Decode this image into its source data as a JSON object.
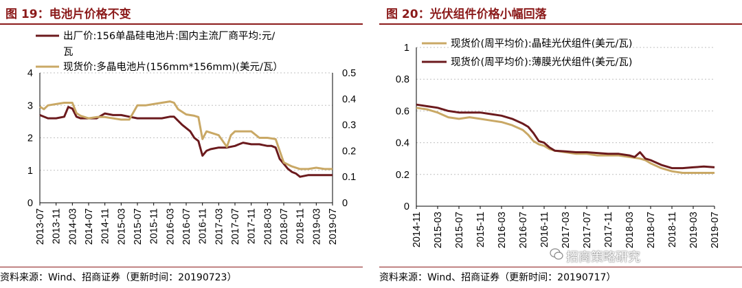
{
  "left": {
    "title": "图 19：电池片价格不变",
    "source": "资料来源：Wind、招商证券（更新时间：20190723）",
    "legend": [
      "出厂价:156单晶硅电池片:国内主流厂商平均:元/",
      "瓦",
      "现货价:多晶电池片(156mm*156mm)(美元/瓦）"
    ],
    "colors": {
      "series1": "#6b1a1d",
      "series2": "#c9a865",
      "accent": "#8b1a1a"
    }
  },
  "right": {
    "title": "图 20：光伏组件价格小幅回落",
    "source": "资料来源：Wind、招商证券（更新时间：20190717）",
    "legend": [
      "现货价(周平均价):晶硅光伏组件(美元/瓦)",
      "现货价(周平均价):薄膜光伏组件(美元/瓦)"
    ],
    "colors": {
      "series1": "#c9a865",
      "series2": "#6b1a1d"
    }
  },
  "watermark": "招商策略研究",
  "chart_data": [
    {
      "type": "line",
      "title": "图 19：电池片价格不变",
      "xlabel": "",
      "ylabel": "",
      "x_ticks": [
        "2013-07",
        "2013-11",
        "2014-03",
        "2014-07",
        "2014-11",
        "2015-03",
        "2015-07",
        "2015-11",
        "2016-03",
        "2016-07",
        "2016-11",
        "2017-03",
        "2017-07",
        "2017-11",
        "2018-03",
        "2018-07",
        "2018-11",
        "2019-03",
        "2019-07"
      ],
      "ylim_left": [
        0,
        4
      ],
      "yticks_left": [
        "0",
        "1",
        "2",
        "3",
        "4"
      ],
      "ylim_right": [
        0,
        0.5
      ],
      "yticks_right": [
        "0",
        "0.1",
        "0.2",
        "0.3",
        "0.4",
        "0.5"
      ],
      "grid": "horizontal dashed",
      "legend_position": "top",
      "series": [
        {
          "name": "出厂价:156单晶硅电池片:国内主流厂商平均:元/瓦",
          "axis": "left",
          "x": [
            "2013-07",
            "2013-09",
            "2013-11",
            "2014-01",
            "2014-02",
            "2014-03",
            "2014-04",
            "2014-05",
            "2014-07",
            "2014-09",
            "2014-11",
            "2015-01",
            "2015-03",
            "2015-05",
            "2015-07",
            "2015-09",
            "2015-11",
            "2016-01",
            "2016-03",
            "2016-04",
            "2016-06",
            "2016-07",
            "2016-08",
            "2016-09",
            "2016-10",
            "2016-11",
            "2016-12",
            "2017-01",
            "2017-03",
            "2017-05",
            "2017-07",
            "2017-08",
            "2017-09",
            "2017-11",
            "2018-01",
            "2018-03",
            "2018-04",
            "2018-05",
            "2018-06",
            "2018-07",
            "2018-08",
            "2018-09",
            "2018-10",
            "2018-11",
            "2019-01",
            "2019-03",
            "2019-05",
            "2019-07"
          ],
          "values": [
            2.7,
            2.6,
            2.6,
            2.65,
            2.95,
            2.9,
            2.65,
            2.6,
            2.6,
            2.6,
            2.75,
            2.7,
            2.7,
            2.65,
            2.6,
            2.6,
            2.6,
            2.6,
            2.65,
            2.65,
            2.4,
            2.3,
            2.2,
            2.0,
            1.9,
            1.45,
            1.6,
            1.65,
            1.7,
            1.7,
            1.75,
            1.8,
            1.85,
            1.8,
            1.8,
            1.75,
            1.75,
            1.7,
            1.35,
            1.2,
            1.05,
            0.95,
            0.9,
            0.8,
            0.85,
            0.85,
            0.85,
            0.85
          ]
        },
        {
          "name": "现货价:多晶电池片(156mm*156mm)(美元/瓦）",
          "axis": "right",
          "x": [
            "2013-07",
            "2013-08",
            "2013-09",
            "2013-11",
            "2014-01",
            "2014-03",
            "2014-04",
            "2014-05",
            "2014-07",
            "2014-09",
            "2014-11",
            "2015-01",
            "2015-03",
            "2015-05",
            "2015-07",
            "2015-09",
            "2015-11",
            "2016-01",
            "2016-03",
            "2016-04",
            "2016-05",
            "2016-07",
            "2016-09",
            "2016-10",
            "2016-11",
            "2016-12",
            "2017-01",
            "2017-03",
            "2017-05",
            "2017-06",
            "2017-07",
            "2017-09",
            "2017-11",
            "2018-01",
            "2018-03",
            "2018-05",
            "2018-06",
            "2018-07",
            "2018-09",
            "2018-11",
            "2019-01",
            "2019-03",
            "2019-05",
            "2019-07"
          ],
          "values": [
            0.37,
            0.36,
            0.375,
            0.38,
            0.385,
            0.385,
            0.345,
            0.335,
            0.325,
            0.33,
            0.33,
            0.325,
            0.32,
            0.32,
            0.375,
            0.375,
            0.38,
            0.385,
            0.39,
            0.385,
            0.36,
            0.34,
            0.335,
            0.33,
            0.245,
            0.275,
            0.27,
            0.26,
            0.215,
            0.26,
            0.275,
            0.275,
            0.275,
            0.25,
            0.25,
            0.245,
            0.2,
            0.155,
            0.14,
            0.13,
            0.13,
            0.135,
            0.13,
            0.13
          ]
        }
      ]
    },
    {
      "type": "line",
      "title": "图 20：光伏组件价格小幅回落",
      "xlabel": "",
      "ylabel": "",
      "x_ticks": [
        "2014-11",
        "2015-03",
        "2015-07",
        "2015-11",
        "2016-03",
        "2016-07",
        "2016-11",
        "2017-03",
        "2017-07",
        "2017-11",
        "2018-03",
        "2018-07",
        "2018-11",
        "2019-03",
        "2019-07"
      ],
      "ylim": [
        0,
        1
      ],
      "yticks": [
        "0",
        "0.2",
        "0.4",
        "0.6",
        "0.8",
        "1"
      ],
      "grid": "horizontal dashed",
      "legend_position": "top",
      "series": [
        {
          "name": "现货价(周平均价):晶硅光伏组件(美元/瓦)",
          "x": [
            "2014-11",
            "2015-01",
            "2015-03",
            "2015-05",
            "2015-07",
            "2015-09",
            "2015-11",
            "2016-01",
            "2016-03",
            "2016-05",
            "2016-07",
            "2016-08",
            "2016-09",
            "2016-10",
            "2016-11",
            "2016-12",
            "2017-01",
            "2017-03",
            "2017-05",
            "2017-07",
            "2017-09",
            "2017-11",
            "2018-01",
            "2018-03",
            "2018-05",
            "2018-06",
            "2018-07",
            "2018-09",
            "2018-11",
            "2019-01",
            "2019-03",
            "2019-05",
            "2019-07"
          ],
          "values": [
            0.62,
            0.61,
            0.59,
            0.56,
            0.55,
            0.56,
            0.55,
            0.54,
            0.53,
            0.51,
            0.48,
            0.45,
            0.41,
            0.39,
            0.38,
            0.36,
            0.35,
            0.34,
            0.33,
            0.33,
            0.32,
            0.32,
            0.32,
            0.31,
            0.3,
            0.29,
            0.27,
            0.24,
            0.22,
            0.21,
            0.21,
            0.21,
            0.21
          ]
        },
        {
          "name": "现货价(周平均价):薄膜光伏组件(美元/瓦)",
          "x": [
            "2014-11",
            "2015-01",
            "2015-03",
            "2015-05",
            "2015-07",
            "2015-09",
            "2015-11",
            "2016-01",
            "2016-03",
            "2016-05",
            "2016-07",
            "2016-08",
            "2016-09",
            "2016-10",
            "2016-11",
            "2016-12",
            "2017-01",
            "2017-03",
            "2017-05",
            "2017-07",
            "2017-09",
            "2017-11",
            "2018-01",
            "2018-03",
            "2018-04",
            "2018-05",
            "2018-06",
            "2018-07",
            "2018-09",
            "2018-11",
            "2019-01",
            "2019-03",
            "2019-05",
            "2019-07"
          ],
          "values": [
            0.64,
            0.63,
            0.62,
            0.6,
            0.59,
            0.59,
            0.59,
            0.58,
            0.57,
            0.55,
            0.52,
            0.5,
            0.46,
            0.41,
            0.4,
            0.37,
            0.35,
            0.345,
            0.34,
            0.34,
            0.335,
            0.33,
            0.33,
            0.32,
            0.31,
            0.34,
            0.3,
            0.29,
            0.26,
            0.24,
            0.24,
            0.245,
            0.25,
            0.245
          ]
        }
      ]
    }
  ]
}
